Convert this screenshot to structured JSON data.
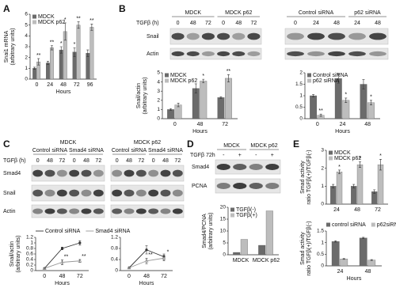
{
  "panels": [
    "A",
    "B",
    "C",
    "D",
    "E"
  ],
  "blots": {
    "B": {
      "left": {
        "groups": [
          "MDCK",
          "MDCK p62"
        ],
        "treatment": "TGFβ (h)",
        "lanes": [
          "0",
          "48",
          "72",
          "0",
          "48",
          "72"
        ],
        "rows": [
          "Snail",
          "Actin"
        ]
      },
      "right": {
        "groups": [
          "Control siRNA",
          "p62 siRNA"
        ],
        "lanes": [
          "0",
          "24",
          "48",
          "24",
          "48"
        ]
      }
    },
    "C": {
      "cells": [
        "MDCK",
        "MDCK p62"
      ],
      "groups": [
        "Control siRNA",
        "Smad4 siRNA",
        "Control siRNA",
        "Smad4 siRNA"
      ],
      "treatment": "TGFβ (h)",
      "lanes": [
        "0",
        "48",
        "72",
        "0",
        "48",
        "72",
        "0",
        "48",
        "72",
        "0",
        "48",
        "72"
      ],
      "rows": [
        "Smad4",
        "Snail",
        "Actin"
      ]
    },
    "D": {
      "treatment": "TGFβ 72h",
      "groups": [
        "MDCK",
        "MDCK p62"
      ],
      "lanes": [
        "-",
        "+",
        "-",
        "+"
      ],
      "rows": [
        "Smad4",
        "PCNA"
      ]
    }
  },
  "chart_data": [
    {
      "type": "bar",
      "y_label": [
        "Snai1 mRNA",
        "(arbitrary units)"
      ],
      "x_label": "Hours",
      "categories": [
        "0",
        "24",
        "48",
        "72",
        "96"
      ],
      "ylim": [
        0,
        6
      ],
      "yticks": [
        0,
        1,
        2,
        3,
        4,
        5,
        6
      ],
      "legend": "upper left",
      "series": [
        {
          "name": "MDCK",
          "color": "#6b6b6b",
          "values": [
            1,
            1.5,
            2.7,
            2.5,
            2.4
          ],
          "errors": [
            0.1,
            0.15,
            0.3,
            0.4,
            0.3
          ],
          "sig": [
            null,
            null,
            "*",
            "*",
            null
          ]
        },
        {
          "name": "MDCK p62",
          "color": "#bdbdbd",
          "values": [
            1.6,
            2.9,
            4.4,
            5.0,
            4.8
          ],
          "errors": [
            0.3,
            0.2,
            0.8,
            0.3,
            0.3
          ],
          "sig": [
            "**",
            "**",
            "*",
            "**",
            "**"
          ]
        }
      ]
    },
    {
      "type": "bar",
      "y_label": [
        "Snail/actin",
        "(arbitrary units)"
      ],
      "x_label": "Hours",
      "categories": [
        "0",
        "48",
        "72"
      ],
      "ylim": [
        0,
        5
      ],
      "yticks": [
        0,
        1,
        2,
        3,
        4,
        5
      ],
      "legend": "upper left",
      "series": [
        {
          "name": "MDCK",
          "color": "#6b6b6b",
          "values": [
            1,
            3.3,
            2.3
          ],
          "errors": [
            0.1,
            0.5,
            0.1
          ],
          "sig": [
            null,
            null,
            null
          ]
        },
        {
          "name": "MDCK p62",
          "color": "#bdbdbd",
          "values": [
            1.5,
            4.1,
            4.4
          ],
          "errors": [
            0.2,
            0.2,
            0.4
          ],
          "sig": [
            null,
            "*",
            "**"
          ]
        }
      ]
    },
    {
      "type": "bar",
      "x_label": "Hours",
      "categories": [
        "0",
        "24",
        "48"
      ],
      "ylim": [
        0,
        2
      ],
      "yticks": [
        0,
        0.5,
        1,
        1.5,
        2
      ],
      "legend": "upper left",
      "series": [
        {
          "name": "Control siRNA",
          "color": "#6b6b6b",
          "values": [
            1,
            1.75,
            1.5
          ],
          "errors": [
            0.05,
            0.2,
            0.2
          ],
          "sig": [
            null,
            null,
            null
          ]
        },
        {
          "name": "p62 siRNA",
          "color": "#bdbdbd",
          "values": [
            0.15,
            0.8,
            0.7
          ],
          "errors": [
            0.05,
            0.1,
            0.1
          ],
          "sig": [
            "**",
            "*",
            "*"
          ]
        }
      ]
    },
    {
      "type": "line",
      "y_label": [
        "Snail/actin",
        "(arbitrary units)"
      ],
      "x_label": "Hours",
      "categories": [
        "0",
        "48",
        "72"
      ],
      "ylim": [
        0,
        1.2
      ],
      "yticks": [
        0,
        0.2,
        0.4,
        0.6,
        0.8,
        1,
        1.2
      ],
      "legend": "top",
      "series": [
        {
          "name": "Control siRNA",
          "color": "#333333",
          "values": [
            0.08,
            0.8,
            1.0
          ],
          "errors": [
            0.02,
            0.05,
            0.08
          ],
          "sig": [
            null,
            null,
            null
          ]
        },
        {
          "name": "Smad4 siRNA",
          "color": "#999999",
          "values": [
            0.08,
            0.3,
            0.35
          ],
          "errors": [
            0.02,
            0.08,
            0.05
          ],
          "sig": [
            null,
            "**",
            "**"
          ]
        }
      ]
    },
    {
      "type": "line",
      "x_label": "Hours",
      "categories": [
        "0",
        "48",
        "72"
      ],
      "ylim": [
        0,
        1.2
      ],
      "yticks": [
        0,
        0.4,
        0.8,
        1.2
      ],
      "series": [
        {
          "color": "#333333",
          "values": [
            0.1,
            0.75,
            0.5
          ],
          "errors": [
            0.02,
            0.15,
            0.1
          ],
          "sig": [
            null,
            null,
            null
          ]
        },
        {
          "color": "#999999",
          "values": [
            0.1,
            0.35,
            0.45
          ],
          "errors": [
            0.02,
            0.1,
            0.1
          ],
          "sig": [
            null,
            "**",
            "*"
          ]
        }
      ]
    },
    {
      "type": "bar",
      "y_label": [
        "Smad4/PCNA",
        "(arbitrary units)"
      ],
      "categories": [
        "MDCK",
        "MDCK p62"
      ],
      "ylim": [
        0,
        20
      ],
      "yticks": [
        0,
        5,
        10,
        15,
        20
      ],
      "legend": "upper left",
      "series": [
        {
          "name": "TGFβ(-)",
          "color": "#6b6b6b",
          "values": [
            1,
            4
          ]
        },
        {
          "name": "TGFβ(+)",
          "color": "#bdbdbd",
          "values": [
            6.5,
            18.5
          ]
        }
      ]
    },
    {
      "type": "bar",
      "y_label": [
        "Smad activity",
        "ratio TGFβ(+)/TGFβ(-)"
      ],
      "categories": [
        "24",
        "48",
        "72"
      ],
      "ylim": [
        0,
        3
      ],
      "yticks": [
        0,
        1,
        2,
        3
      ],
      "legend": "upper left",
      "series": [
        {
          "name": "MDCK",
          "color": "#6b6b6b",
          "values": [
            1,
            1,
            0.7
          ],
          "errors": [
            0.1,
            0.1,
            0.1
          ],
          "sig": [
            null,
            null,
            null
          ]
        },
        {
          "name": "MDCK p62",
          "color": "#bdbdbd",
          "values": [
            1.8,
            2.2,
            2.2
          ],
          "errors": [
            0.1,
            0.15,
            0.3
          ],
          "sig": [
            "*",
            "*",
            "*"
          ]
        }
      ]
    },
    {
      "type": "bar",
      "y_label": [
        "Smad activity",
        "ratio TGFβ(+)/TGFβ(-)"
      ],
      "x_label": "Hours",
      "categories": [
        "24",
        "48"
      ],
      "ylim": [
        0,
        1.5
      ],
      "yticks": [
        0,
        0.5,
        1,
        1.5
      ],
      "legend": "top",
      "series": [
        {
          "name": "control siRNA",
          "color": "#6b6b6b",
          "values": [
            1.05,
            1.2
          ],
          "errors": [
            0.03,
            0.03
          ]
        },
        {
          "name": "p62siRNA",
          "color": "#bdbdbd",
          "values": [
            0.3,
            0.25
          ],
          "errors": [
            0.02,
            0.02
          ]
        }
      ]
    }
  ]
}
